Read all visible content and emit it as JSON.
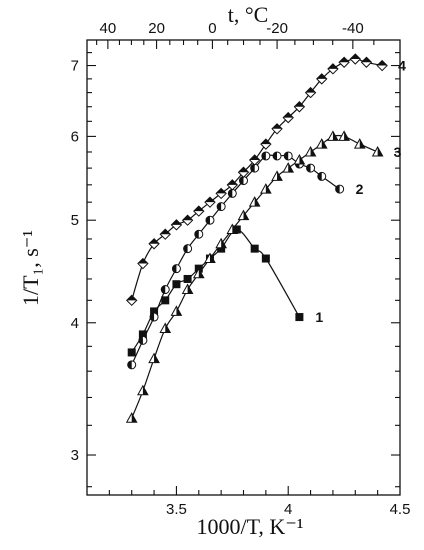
{
  "chart_data": {
    "type": "scatter",
    "xlabel": "1000/T, K⁻¹",
    "ylabel": "1/T₁, s⁻¹",
    "top_axis_label": "t, °C",
    "xlim": [
      3.1,
      4.5
    ],
    "ylim": [
      2.75,
      7.4
    ],
    "y_scale": "log",
    "x_ticks": [
      3.5,
      4.0,
      4.5
    ],
    "x_tick_labels": [
      "3.5",
      "4",
      "4.5"
    ],
    "y_ticks": [
      3,
      4,
      5,
      6,
      7
    ],
    "y_tick_labels": [
      "3",
      "4",
      "5",
      "6",
      "7"
    ],
    "top_ticks": [
      40,
      20,
      0,
      -20,
      -40
    ],
    "top_tick_labels": [
      "40",
      "20",
      "0",
      "-20",
      "-40"
    ],
    "grid": false,
    "series": [
      {
        "name": "1",
        "marker": "square",
        "x": [
          3.3,
          3.35,
          3.4,
          3.45,
          3.5,
          3.55,
          3.6,
          3.65,
          3.7,
          3.77,
          3.85,
          3.9,
          4.05
        ],
        "y": [
          3.75,
          3.9,
          4.1,
          4.2,
          4.35,
          4.4,
          4.5,
          4.6,
          4.7,
          4.9,
          4.7,
          4.6,
          4.05
        ]
      },
      {
        "name": "2",
        "marker": "half-circle",
        "x": [
          3.3,
          3.35,
          3.4,
          3.45,
          3.5,
          3.55,
          3.6,
          3.65,
          3.7,
          3.75,
          3.8,
          3.85,
          3.9,
          3.95,
          4.0,
          4.05,
          4.1,
          4.15,
          4.23
        ],
        "y": [
          3.65,
          3.85,
          4.05,
          4.3,
          4.5,
          4.7,
          4.85,
          5.0,
          5.15,
          5.3,
          5.45,
          5.6,
          5.75,
          5.75,
          5.75,
          5.65,
          5.6,
          5.5,
          5.35
        ]
      },
      {
        "name": "3",
        "marker": "triangle",
        "x": [
          3.3,
          3.35,
          3.4,
          3.45,
          3.5,
          3.55,
          3.6,
          3.65,
          3.7,
          3.75,
          3.8,
          3.85,
          3.9,
          3.95,
          4.0,
          4.05,
          4.1,
          4.15,
          4.2,
          4.25,
          4.32,
          4.4
        ],
        "y": [
          3.25,
          3.45,
          3.7,
          3.95,
          4.1,
          4.3,
          4.45,
          4.6,
          4.75,
          4.9,
          5.05,
          5.2,
          5.35,
          5.5,
          5.6,
          5.7,
          5.8,
          5.9,
          6.0,
          6.0,
          5.9,
          5.8
        ]
      },
      {
        "name": "4",
        "marker": "diamond",
        "x": [
          3.3,
          3.35,
          3.4,
          3.45,
          3.5,
          3.55,
          3.6,
          3.65,
          3.7,
          3.75,
          3.8,
          3.85,
          3.9,
          3.95,
          4.0,
          4.05,
          4.1,
          4.15,
          4.2,
          4.25,
          4.3,
          4.35,
          4.42
        ],
        "y": [
          4.2,
          4.55,
          4.75,
          4.85,
          4.95,
          5.0,
          5.1,
          5.2,
          5.3,
          5.4,
          5.55,
          5.7,
          5.9,
          6.1,
          6.25,
          6.4,
          6.6,
          6.8,
          6.95,
          7.05,
          7.1,
          7.05,
          7.0
        ]
      }
    ]
  }
}
